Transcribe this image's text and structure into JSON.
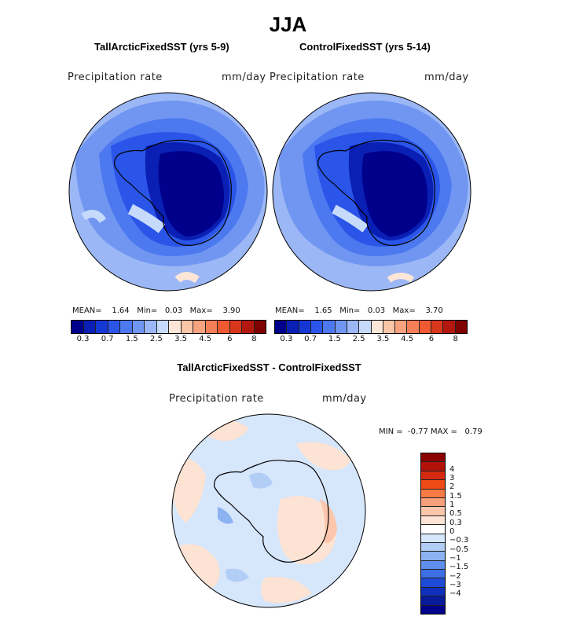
{
  "page": {
    "title": "JJA"
  },
  "left_panel": {
    "title": "TallArcticFixedSST (yrs 5-9)",
    "variable": "Precipitation rate",
    "units": "mm/day",
    "stats": {
      "mean_label": "MEAN=",
      "mean": "1.64",
      "min_label": "Min=",
      "min": "0.03",
      "max_label": "Max=",
      "max": "3.90"
    }
  },
  "right_panel": {
    "title": "ControlFixedSST (yrs 5-14)",
    "variable": "Precipitation rate",
    "units": "mm/day",
    "stats": {
      "mean_label": "MEAN=",
      "mean": "1.65",
      "min_label": "Min=",
      "min": "0.03",
      "max_label": "Max=",
      "max": "3.70"
    }
  },
  "abs_colorbar": {
    "colors": [
      "#00008b",
      "#0a1fb4",
      "#1537d3",
      "#2a55e8",
      "#4c78f0",
      "#7196f2",
      "#9bb7f5",
      "#c6dbfb",
      "#fde6d8",
      "#fac6a8",
      "#f7a380",
      "#f47f58",
      "#ef5a33",
      "#d8371a",
      "#b2180e",
      "#7f0000"
    ],
    "tick_labels": [
      "0.3",
      "0.7",
      "1.5",
      "2.5",
      "3.5",
      "4.5",
      "6",
      "8"
    ]
  },
  "diff_panel": {
    "title": "TallArcticFixedSST - ControlFixedSST",
    "variable": "Precipitation rate",
    "units": "mm/day",
    "stats": {
      "min_label": "MIN =",
      "min": "-0.77",
      "max_label": "MAX =",
      "max": "0.79"
    }
  },
  "diff_colorbar": {
    "colors_top_to_bottom": [
      "#8b0000",
      "#b3120b",
      "#d52a10",
      "#ef4a17",
      "#f57a45",
      "#f7a07a",
      "#fbc6ab",
      "#fde3d3",
      "#ffffff",
      "#d6e6fb",
      "#b2cef6",
      "#8cb2f1",
      "#5f8fec",
      "#3d6fe4",
      "#1f4ad6",
      "#0f2fbc",
      "#0a1a9c",
      "#00008b"
    ],
    "tick_labels": [
      "4",
      "3",
      "2",
      "1.5",
      "1",
      "0.5",
      "0.3",
      "0",
      "-0.3",
      "-0.5",
      "-1",
      "-1.5",
      "-2",
      "-3",
      "-4"
    ]
  }
}
